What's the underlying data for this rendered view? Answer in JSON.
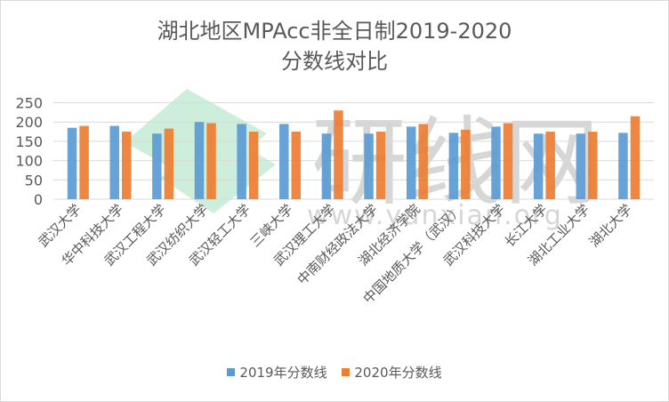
{
  "chart_data": {
    "type": "bar",
    "title_line1": "湖北地区MPAcc非全日制2019-2020",
    "title_line2": "分数线对比",
    "categories": [
      "武汉大学",
      "华中科技大学",
      "武汉工程大学",
      "武汉纺织大学",
      "武汉轻工大学",
      "三峡大学",
      "武汉理工大学",
      "中南财经政法大学",
      "湖北经济学院",
      "中国地质大学（武汉）",
      "武汉科技大学",
      "长江大学",
      "湖北工业大学",
      "湖北大学"
    ],
    "series": [
      {
        "name": "2019年分数线",
        "color": "#5b9bd5",
        "values": [
          185,
          190,
          170,
          200,
          195,
          195,
          170,
          170,
          188,
          172,
          188,
          170,
          170,
          172
        ]
      },
      {
        "name": "2020年分数线",
        "color": "#ed7d31",
        "values": [
          190,
          175,
          183,
          197,
          175,
          175,
          230,
          175,
          195,
          180,
          197,
          175,
          175,
          215
        ]
      }
    ],
    "yticks": [
      0,
      50,
      100,
      150,
      200,
      250
    ],
    "ylim": [
      0,
      250
    ],
    "grid": true,
    "legend": "bottom",
    "xlabel": "",
    "ylabel": ""
  },
  "watermark": {
    "big": "研线网",
    "url": "www.yanxian.org"
  }
}
